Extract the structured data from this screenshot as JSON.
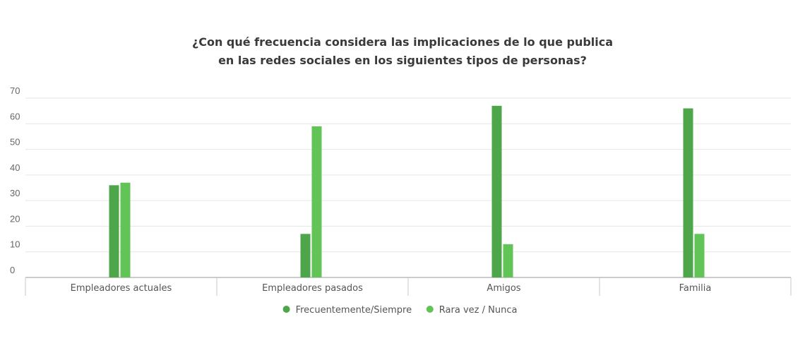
{
  "chart_data": {
    "type": "bar",
    "title_lines": [
      "¿Con qué frecuencia considera las implicaciones de lo que publica",
      "en las redes sociales en los siguientes tipos de personas?"
    ],
    "categories": [
      "Empleadores actuales",
      "Empleadores pasados",
      "Amigos",
      "Familia"
    ],
    "series": [
      {
        "name": "Frecuentemente/Siempre",
        "color": "#4ea64a",
        "values": [
          36,
          17,
          67,
          66
        ]
      },
      {
        "name": "Rara vez / Nunca",
        "color": "#62c356",
        "values": [
          37,
          59,
          13,
          17
        ]
      }
    ],
    "ylim": [
      0,
      70
    ],
    "yticks": [
      0,
      10,
      20,
      30,
      40,
      50,
      60,
      70
    ],
    "grid": true,
    "legend_position": "bottom-center"
  }
}
